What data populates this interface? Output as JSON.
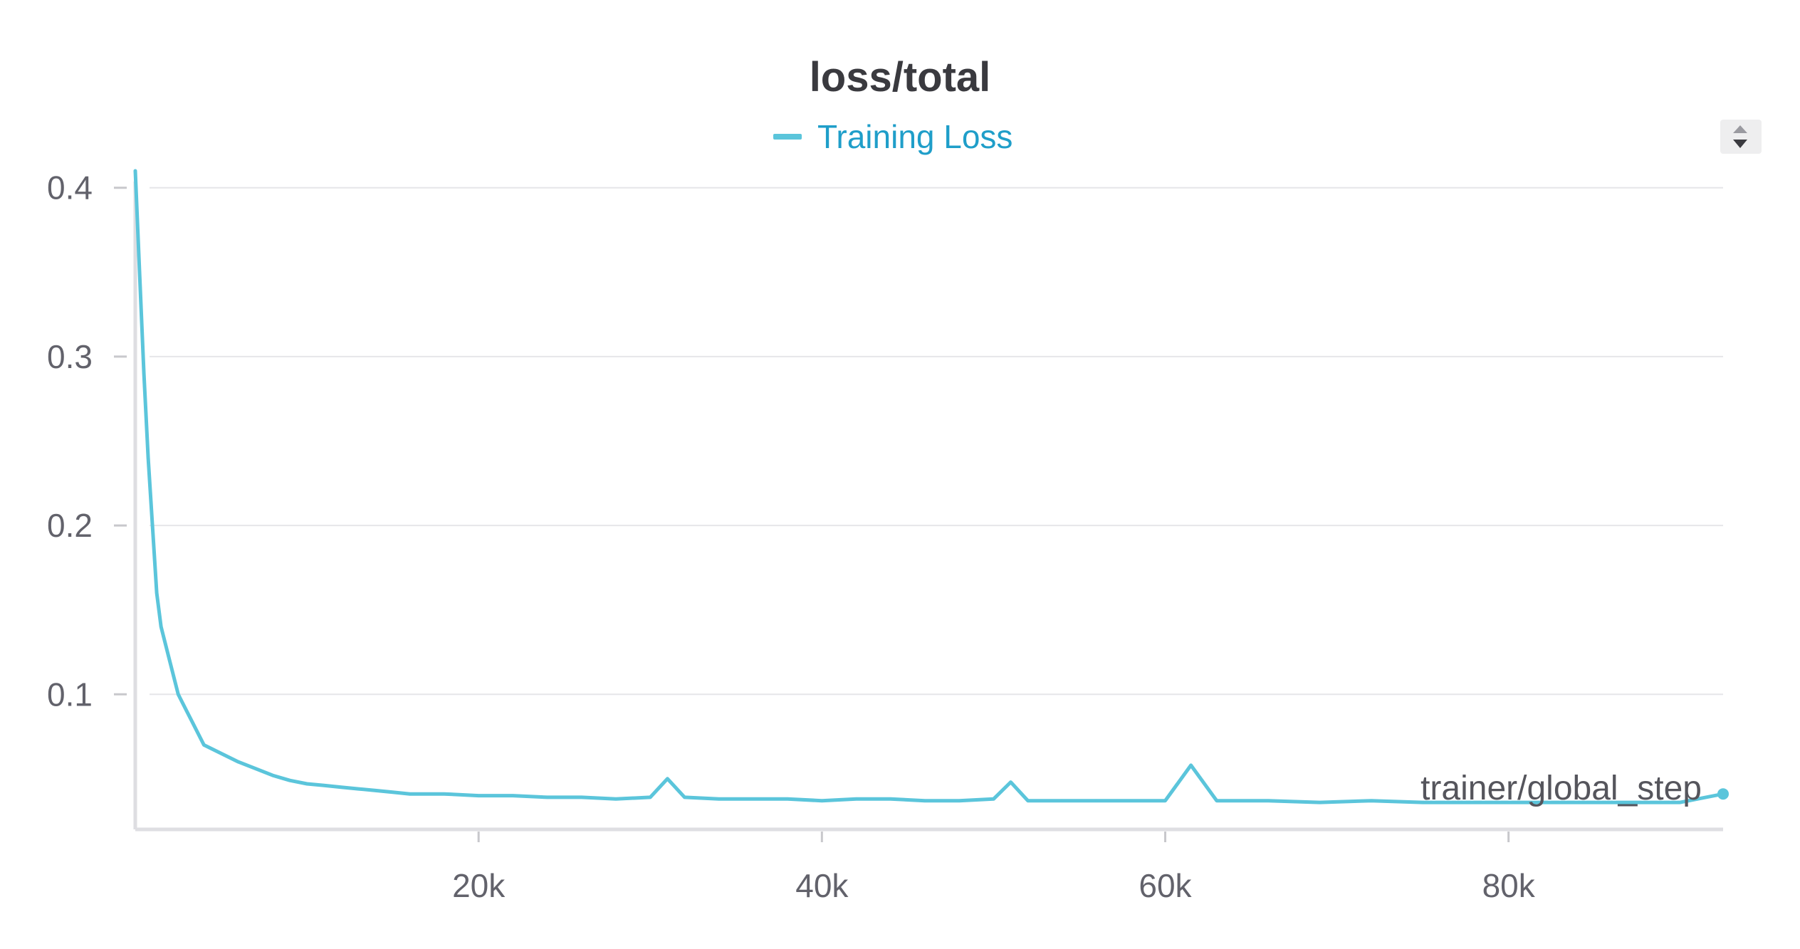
{
  "chart_data": {
    "type": "line",
    "title": "loss/total",
    "xlabel": "trainer/global_step",
    "ylabel": "",
    "xlim": [
      0,
      92500
    ],
    "ylim": [
      0.02,
      0.41
    ],
    "x_ticks": [
      20000,
      40000,
      60000,
      80000
    ],
    "x_tick_labels": [
      "20k",
      "40k",
      "60k",
      "80k"
    ],
    "y_ticks": [
      0.1,
      0.2,
      0.3,
      0.4
    ],
    "y_tick_labels": [
      "0.1",
      "0.2",
      "0.3",
      "0.4"
    ],
    "grid": true,
    "legend_position": "top-center",
    "series": [
      {
        "name": "Training Loss",
        "color": "#5bc5db",
        "x": [
          0,
          250,
          500,
          750,
          1000,
          1250,
          1500,
          2000,
          2500,
          3000,
          3500,
          4000,
          5000,
          6000,
          7000,
          8000,
          9000,
          10000,
          11000,
          12000,
          13000,
          14000,
          15000,
          16000,
          18000,
          20000,
          22000,
          24000,
          26000,
          28000,
          30000,
          31000,
          32000,
          34000,
          36000,
          38000,
          40000,
          42000,
          44000,
          46000,
          48000,
          50000,
          51000,
          52000,
          54000,
          56000,
          58000,
          60000,
          61500,
          63000,
          66000,
          69000,
          72000,
          75000,
          78000,
          81000,
          84000,
          87000,
          90000,
          92500
        ],
        "values": [
          0.41,
          0.35,
          0.29,
          0.24,
          0.2,
          0.16,
          0.14,
          0.12,
          0.1,
          0.09,
          0.08,
          0.07,
          0.065,
          0.06,
          0.056,
          0.052,
          0.049,
          0.047,
          0.046,
          0.045,
          0.044,
          0.043,
          0.042,
          0.041,
          0.041,
          0.04,
          0.04,
          0.039,
          0.039,
          0.038,
          0.039,
          0.05,
          0.039,
          0.038,
          0.038,
          0.038,
          0.037,
          0.038,
          0.038,
          0.037,
          0.037,
          0.038,
          0.048,
          0.037,
          0.037,
          0.037,
          0.037,
          0.037,
          0.058,
          0.037,
          0.037,
          0.036,
          0.037,
          0.036,
          0.036,
          0.036,
          0.036,
          0.036,
          0.036,
          0.041
        ]
      }
    ]
  },
  "ui": {
    "sort_control_icon": "sort-arrows-icon"
  }
}
